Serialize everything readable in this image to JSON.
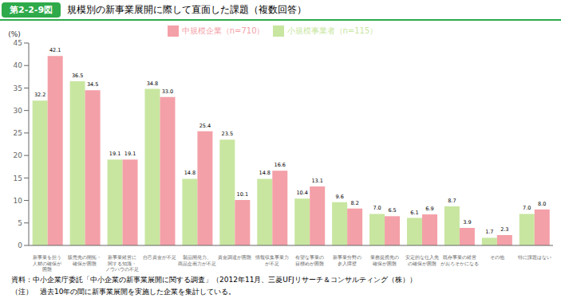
{
  "chart_data": {
    "type": "bar",
    "title": "規模別の新事業展開に際して直面した課題（複数回答）",
    "annotations": [
      "第2-2-9図",
      "資料：中小企業庁委託「中小企業の新事業展開に関する調査」（2012年11月、三菱UFJリサーチ＆コンサルティング（株））",
      "（注）　過去10年の間に新事業展開を実施した企業を集計している。"
    ],
    "categories": [
      "新事業を担う\n人材の確保が\n困難",
      "販売先の開拓・\n確保が困難",
      "新事業経営に\n関する知識・\nノウハウの不足",
      "自己資金が不足",
      "製品開発力、\n商品企画力が不足",
      "資金調達が困難",
      "情報収集事業力\nが不足",
      "有望な事業の\n目標めが困難",
      "新事業分野の\n参入障壁",
      "業務提携先の\n確保が困難",
      "安定的な仕入先\nの確保が困難",
      "既存事業の経営\nがおろそかになる",
      "その他",
      "特に課題はない"
    ],
    "series": [
      {
        "name": "小規模事業者（n=115）",
        "color": "#c8e6a0",
        "values": [
          32.2,
          36.5,
          19.1,
          34.8,
          14.8,
          23.5,
          14.8,
          10.4,
          9.6,
          7.0,
          6.1,
          8.7,
          1.7,
          7.0
        ],
        "value_labels": [
          "32.2",
          "36.5",
          "19.1",
          "34.8",
          "14.8",
          "23.5",
          "14.8",
          "10.4",
          "9.6",
          "7.0",
          "6.1",
          "8.7",
          "1.7",
          "7.0"
        ]
      },
      {
        "name": "中規模企業（n=710）",
        "color": "#f4a0a8",
        "values": [
          42.1,
          34.5,
          19.1,
          33.0,
          25.4,
          10.1,
          16.6,
          13.1,
          8.2,
          6.5,
          6.9,
          3.9,
          2.3,
          8.0
        ],
        "value_labels": [
          "42.1",
          "34.5",
          "19.1",
          "33.0",
          "25.4",
          "10.1",
          "16.6",
          "13.1",
          "8.2",
          "6.5",
          "6.9",
          "3.9",
          "2.3",
          "8.0"
        ]
      }
    ],
    "ylabel": "(%)",
    "ylim": [
      0,
      45
    ],
    "yticks": [
      0,
      5,
      10,
      15,
      20,
      25,
      30,
      35,
      40,
      45
    ],
    "grid": false,
    "legend": "top",
    "data_labels": true
  }
}
